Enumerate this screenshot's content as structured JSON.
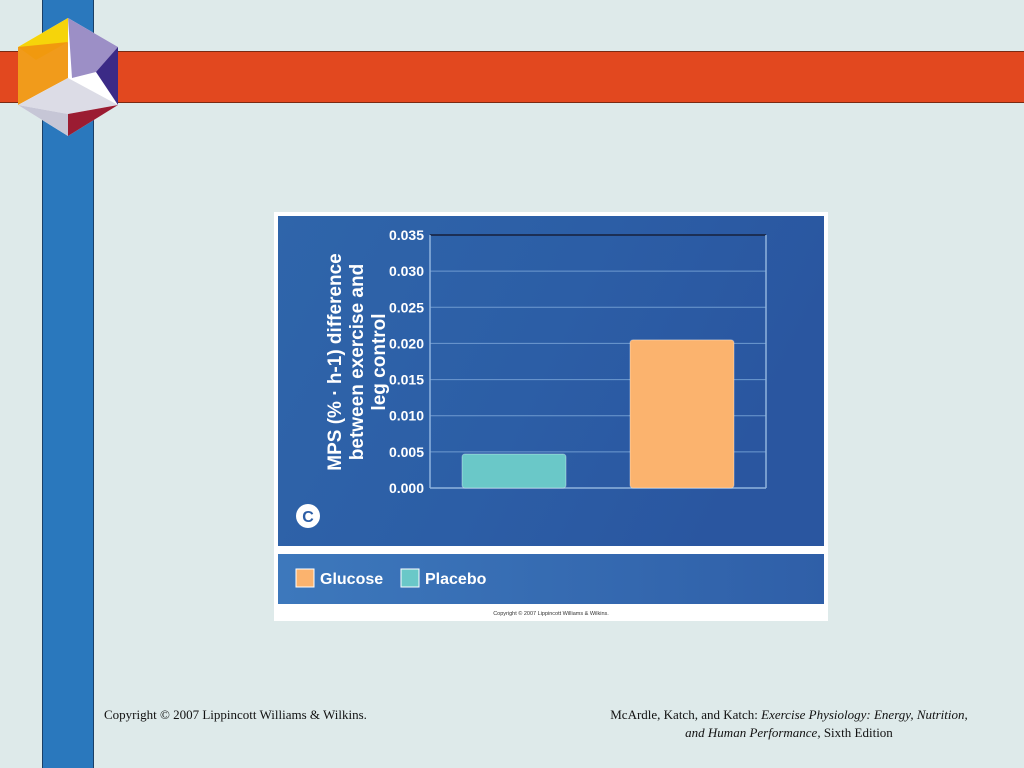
{
  "slide": {
    "colors": {
      "background": "#deeaea",
      "vertical_bar": "#2a78bd",
      "horizontal_bar": "#e2481f"
    },
    "logo_icon": "hexagon-cube-logo-icon"
  },
  "footer": {
    "left": "Copyright © 2007 Lippincott Williams & Wilkins.",
    "right_authors": "McArdle, Katch, and Katch: ",
    "right_title": "Exercise Physiology: Energy, Nutrition, and Human Performance,",
    "right_edition": " Sixth Edition"
  },
  "chart_data": {
    "type": "bar",
    "panel_label": "C",
    "title": "",
    "xlabel": "",
    "ylabel": "MPS (% · h-1) difference between exercise and leg control",
    "ylabel_lines": [
      "MPS (% · h-1) difference",
      "between exercise and",
      "leg control"
    ],
    "ylim": [
      0,
      0.035
    ],
    "yticks": [
      "0.000",
      "0.005",
      "0.010",
      "0.015",
      "0.020",
      "0.025",
      "0.030",
      "0.035"
    ],
    "grid": true,
    "legend_position": "bottom",
    "series": [
      {
        "name": "Placebo",
        "value": 0.0047,
        "color": "#6ac8c8"
      },
      {
        "name": "Glucose",
        "value": 0.0205,
        "color": "#fbb36e"
      }
    ],
    "legend": [
      {
        "name": "Glucose",
        "color": "#fbb36e"
      },
      {
        "name": "Placebo",
        "color": "#6ac8c8"
      }
    ],
    "copyright": "Copyright © 2007 Lippincott Williams & Wilkins."
  }
}
